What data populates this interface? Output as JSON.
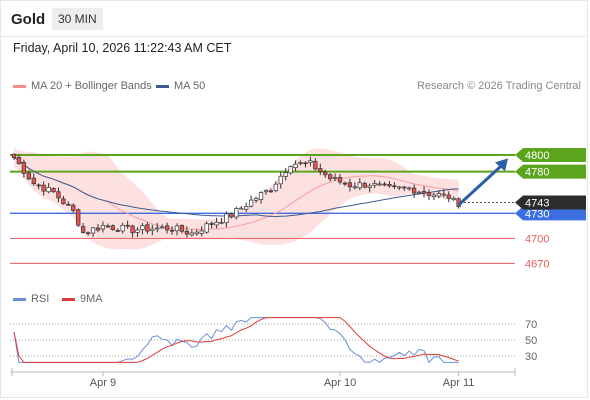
{
  "header": {
    "instrument": "Gold",
    "timeframe": "30 MIN"
  },
  "datetime": "Friday, April 10, 2026 11:22:43 AM CET",
  "legend": {
    "bollinger_label": "MA 20 + Bollinger Bands",
    "ma50_label": "MA 50",
    "source": "Research © 2026 Trading Central",
    "rsi_label": "RSI",
    "rsi_ma_label": "9MA"
  },
  "colors": {
    "bull": "#e8534f",
    "bear": "#e8534f",
    "ma20": "#f4a0a0",
    "band_fill": "#fde0e0",
    "ma50": "#3f5b8f",
    "resistance": "#5ba51c",
    "support_line": "#3b6fe0",
    "support_red": "#e85c5c",
    "price_tag": "#2c2c2c",
    "arrow": "#2b5ea8",
    "rsi": "#6b8fd6",
    "rsi_ma": "#e03c3c"
  },
  "chart_data": {
    "type": "candlestick",
    "ylim": [
      4650,
      4830
    ],
    "price_levels": [
      {
        "label": "4800",
        "value": 4800,
        "kind": "resistance"
      },
      {
        "label": "4780",
        "value": 4780,
        "kind": "resistance"
      },
      {
        "label": "4730",
        "value": 4730,
        "kind": "pivot"
      },
      {
        "label": "4700",
        "value": 4700,
        "kind": "support"
      },
      {
        "label": "4670",
        "value": 4670,
        "kind": "support"
      }
    ],
    "current_price": {
      "label": "4743",
      "value": 4743
    },
    "forecast_arrow": {
      "from_index": 90,
      "from_price": 4740,
      "to_index": 100,
      "to_price": 4796
    },
    "x_ticks": [
      {
        "label": "Apr 9",
        "index": 18
      },
      {
        "label": "Apr 10",
        "index": 66
      },
      {
        "label": "Apr 11",
        "index": 90
      }
    ],
    "rsi": {
      "levels": [
        70,
        50,
        30
      ],
      "ylim": [
        15,
        85
      ]
    },
    "segments": [
      [
        0,
        4797
      ],
      [
        4,
        4766
      ],
      [
        8,
        4755
      ],
      [
        12,
        4732
      ],
      [
        14,
        4707
      ],
      [
        18,
        4715
      ],
      [
        24,
        4710
      ],
      [
        28,
        4712
      ],
      [
        32,
        4712
      ],
      [
        36,
        4706
      ],
      [
        40,
        4718
      ],
      [
        44,
        4728
      ],
      [
        48,
        4745
      ],
      [
        52,
        4760
      ],
      [
        56,
        4790
      ],
      [
        60,
        4789
      ],
      [
        64,
        4772
      ],
      [
        68,
        4764
      ],
      [
        72,
        4765
      ],
      [
        76,
        4759
      ],
      [
        80,
        4760
      ],
      [
        84,
        4754
      ],
      [
        88,
        4750
      ],
      [
        90,
        4738
      ]
    ],
    "candle_count": 91
  }
}
